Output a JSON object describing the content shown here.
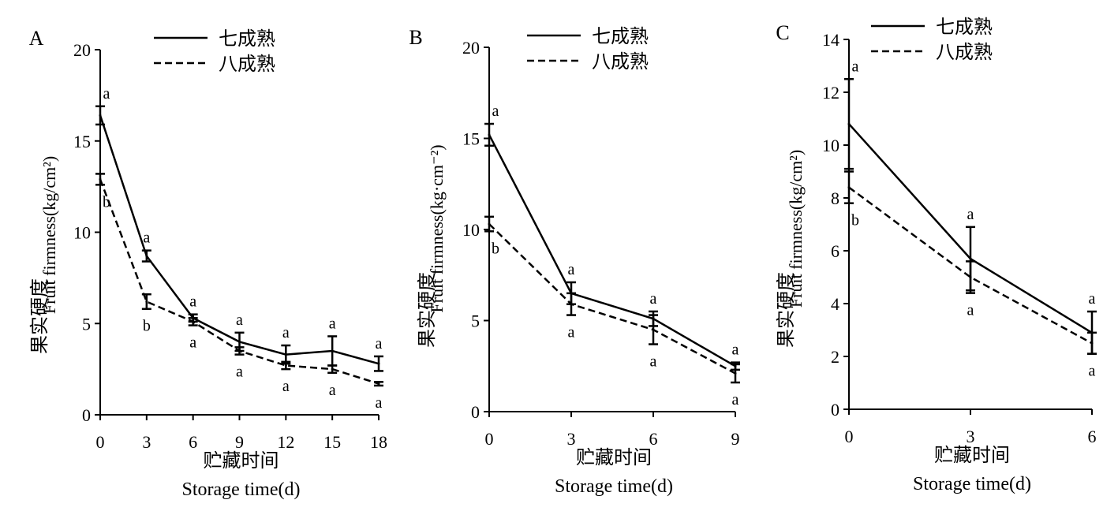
{
  "chart_data": [
    {
      "panel_label": "A",
      "type": "line",
      "xlabel_cn": "贮藏时间",
      "xlabel_en": "Storage time(d)",
      "ylabel_cn": "果实硬度",
      "ylabel_en": "Fruit firmness(kg/cm²)",
      "x": [
        0,
        3,
        6,
        9,
        12,
        15,
        18
      ],
      "xlim": [
        0,
        18
      ],
      "ylim": [
        0,
        20
      ],
      "yticks": [
        0,
        5,
        10,
        15,
        20
      ],
      "series": [
        {
          "name": "七成熟",
          "style": "solid",
          "values": [
            16.4,
            8.7,
            5.3,
            4.0,
            3.3,
            3.5,
            2.8
          ],
          "errors": [
            0.5,
            0.3,
            0.2,
            0.5,
            0.5,
            0.8,
            0.4
          ],
          "letters": [
            "a",
            "a",
            "a",
            "a",
            "a",
            "a",
            "a"
          ]
        },
        {
          "name": "八成熟",
          "style": "dashed",
          "values": [
            12.9,
            6.2,
            5.1,
            3.5,
            2.7,
            2.5,
            1.7
          ],
          "errors": [
            0.3,
            0.4,
            0.2,
            0.2,
            0.2,
            0.2,
            0.1
          ],
          "letters": [
            "b",
            "b",
            "a",
            "a",
            "a",
            "a",
            "a"
          ]
        }
      ]
    },
    {
      "panel_label": "B",
      "type": "line",
      "xlabel_cn": "贮藏时间",
      "xlabel_en": "Storage time(d)",
      "ylabel_cn": "果实硬度",
      "ylabel_en": "Fruit firmness(kg·cm⁻²)",
      "x": [
        0,
        3,
        6,
        9
      ],
      "xlim": [
        0,
        9
      ],
      "ylim": [
        0,
        20
      ],
      "yticks": [
        0,
        5,
        10,
        15,
        20
      ],
      "series": [
        {
          "name": "七成熟",
          "style": "solid",
          "values": [
            15.2,
            6.5,
            5.1,
            2.5
          ],
          "errors": [
            0.6,
            0.6,
            0.4,
            0.2
          ],
          "letters": [
            "a",
            "a",
            "a",
            "a"
          ]
        },
        {
          "name": "八成熟",
          "style": "dashed",
          "values": [
            10.3,
            5.9,
            4.5,
            2.1
          ],
          "errors": [
            0.4,
            0.6,
            0.8,
            0.5
          ],
          "letters": [
            "b",
            "a",
            "a",
            "a"
          ]
        }
      ]
    },
    {
      "panel_label": "C",
      "type": "line",
      "xlabel_cn": "贮藏时间",
      "xlabel_en": "Storage time(d)",
      "ylabel_cn": "果实硬度",
      "ylabel_en": "Fruit firmness(kg/cm²)",
      "x": [
        0,
        3,
        6
      ],
      "xlim": [
        0,
        6
      ],
      "ylim": [
        0,
        14
      ],
      "yticks": [
        0,
        2,
        4,
        6,
        8,
        10,
        12,
        14
      ],
      "series": [
        {
          "name": "七成熟",
          "style": "solid",
          "values": [
            10.8,
            5.7,
            2.9
          ],
          "errors": [
            1.7,
            1.2,
            0.8
          ],
          "letters": [
            "a",
            "a",
            "a"
          ]
        },
        {
          "name": "八成熟",
          "style": "dashed",
          "values": [
            8.4,
            5.0,
            2.5
          ],
          "errors": [
            0.6,
            0.6,
            0.4
          ],
          "letters": [
            "b",
            "a",
            "a"
          ]
        }
      ]
    }
  ]
}
